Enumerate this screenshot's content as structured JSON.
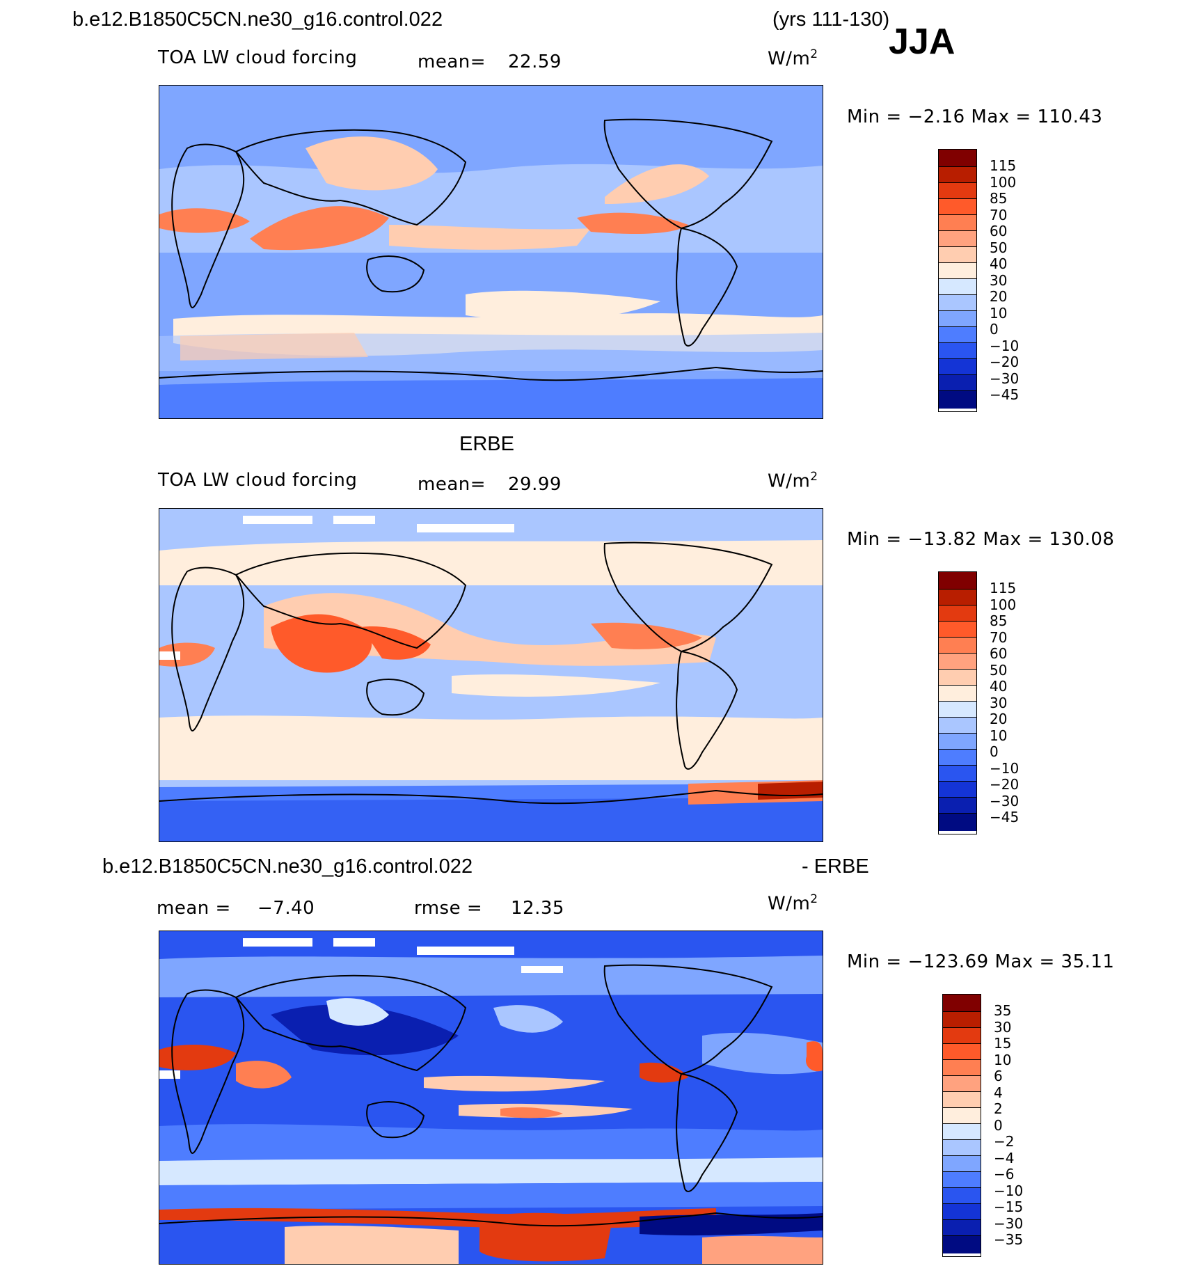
{
  "header": {
    "case_name": "b.e12.B1850C5CN.ne30_g16.control.022",
    "years": "(yrs 111-130)",
    "season": "JJA"
  },
  "panels": [
    {
      "title": "",
      "field": "TOA LW cloud forcing",
      "stat1_label": "mean=",
      "stat1_value": "22.59",
      "units_base": "W/m",
      "units_exp": "2",
      "minmax": "Min =   −2.16  Max  =  110.43",
      "legend_labels": [
        "115",
        "100",
        "85",
        "70",
        "60",
        "50",
        "40",
        "30",
        "20",
        "10",
        "0",
        "−10",
        "−20",
        "−30",
        "−45"
      ]
    },
    {
      "title": "ERBE",
      "field": "TOA LW cloud forcing",
      "stat1_label": "mean=",
      "stat1_value": "29.99",
      "units_base": "W/m",
      "units_exp": "2",
      "minmax": "Min  =  −13.82  Max  =  130.08",
      "legend_labels": [
        "115",
        "100",
        "85",
        "70",
        "60",
        "50",
        "40",
        "30",
        "20",
        "10",
        "0",
        "−10",
        "−20",
        "−30",
        "−45"
      ]
    },
    {
      "title_left": "b.e12.B1850C5CN.ne30_g16.control.022",
      "title_right": "- ERBE",
      "stat1_label": "mean =",
      "stat1_value": "−7.40",
      "stat2_label": "rmse =",
      "stat2_value": "12.35",
      "units_base": "W/m",
      "units_exp": "2",
      "minmax": "Min  =  −123.69  Max  =    35.11",
      "legend_labels": [
        "35",
        "30",
        "15",
        "10",
        "6",
        "4",
        "2",
        "0",
        "−2",
        "−4",
        "−6",
        "−10",
        "−15",
        "−30",
        "−35"
      ]
    }
  ],
  "colors": {
    "scale": [
      "#800000",
      "#b81e00",
      "#e33a10",
      "#ff5a2a",
      "#ff7f52",
      "#ffa27f",
      "#ffcdb0",
      "#ffeedd",
      "#d6e8ff",
      "#aac6ff",
      "#7fa6ff",
      "#4e7dff",
      "#2a55f0",
      "#1434d6",
      "#0a1fb0",
      "#000b82"
    ]
  }
}
